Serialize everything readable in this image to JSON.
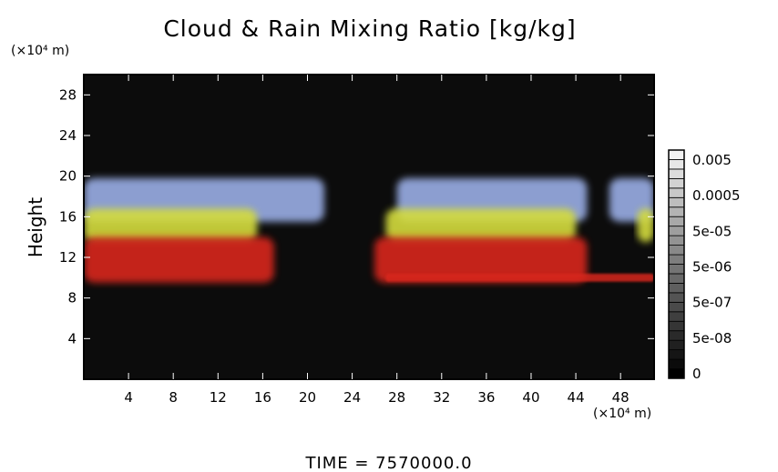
{
  "chart_data": {
    "type": "heatmap",
    "title": "Cloud & Rain Mixing Ratio [kg/kg]",
    "xlabel": "",
    "ylabel": "Height",
    "x_unit": "(×10⁴ m)",
    "y_unit": "(×10⁴ m)",
    "xlim": [
      0,
      51
    ],
    "ylim": [
      0,
      30
    ],
    "x_ticks": [
      "4",
      "8",
      "12",
      "16",
      "20",
      "24",
      "28",
      "32",
      "36",
      "40",
      "44",
      "48"
    ],
    "y_ticks": [
      "4",
      "8",
      "12",
      "16",
      "20",
      "24",
      "28"
    ],
    "colorbar": {
      "labels": [
        "0.005",
        "0.0005",
        "5e-05",
        "5e-06",
        "5e-07",
        "5e-08",
        "0"
      ],
      "levels": 24,
      "colors": [
        "#000000",
        "#f2f2f2"
      ]
    },
    "background": "#0c0c0c",
    "layers": [
      {
        "color": "#9aaee6",
        "y_range": [
          15.5,
          19.8
        ],
        "x_extent": [
          [
            0,
            21.5
          ],
          [
            28,
            45
          ],
          [
            47,
            51
          ]
        ]
      },
      {
        "color": "#d4dc3c",
        "y_range": [
          13.5,
          16.8
        ],
        "x_extent": [
          [
            0,
            15.5
          ],
          [
            27,
            44
          ],
          [
            49.5,
            51
          ]
        ]
      },
      {
        "color": "#d8261c",
        "y_range": [
          9.5,
          14
        ],
        "x_extent": [
          [
            0,
            17
          ],
          [
            26,
            45
          ]
        ]
      },
      {
        "color": "#d8261c",
        "y_range": [
          9.6,
          10.4
        ],
        "x_extent": [
          [
            27,
            51
          ]
        ]
      }
    ],
    "footer": "TIME = 7570000.0"
  }
}
